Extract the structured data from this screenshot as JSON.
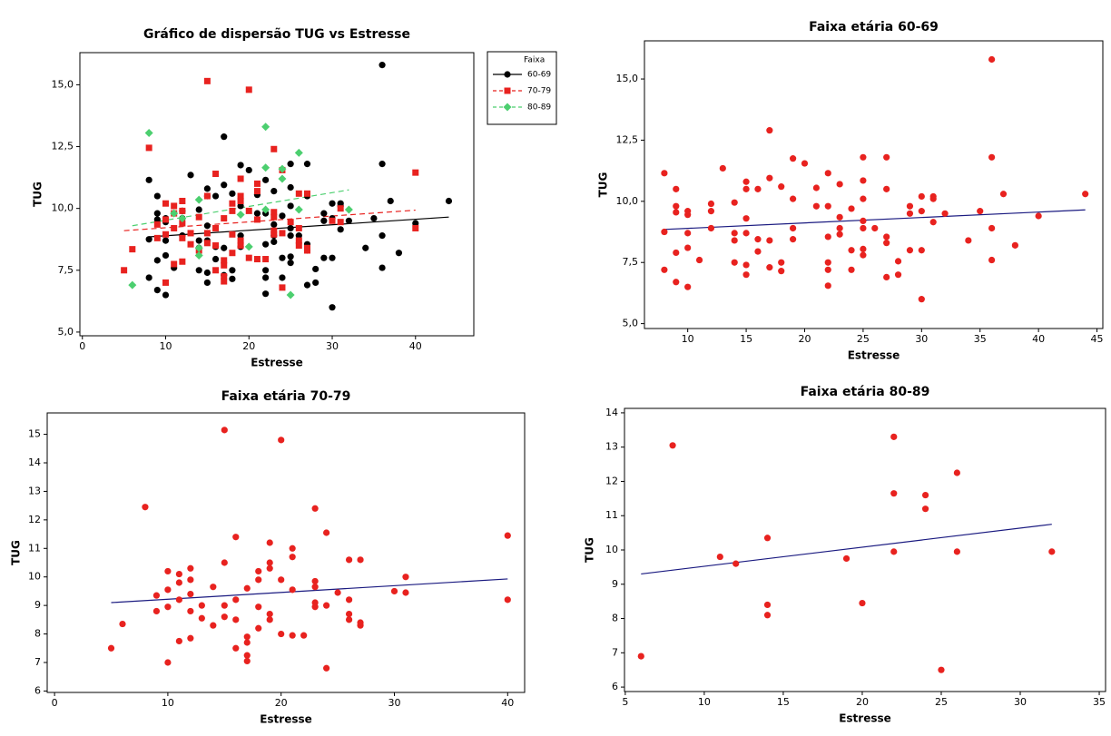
{
  "chart_data": [
    {
      "type": "scatter",
      "title": "Gráfico de dispersão TUG vs Estresse",
      "x_label": "Estresse",
      "y_label": "TUG",
      "xlim": [
        -0.3,
        47
      ],
      "ylim": [
        4.85,
        16.3
      ],
      "xticks": [
        0,
        10,
        20,
        30,
        40
      ],
      "yticks": [
        {
          "value": 5,
          "label": "5,0"
        },
        {
          "value": 7.5,
          "label": "7,5"
        },
        {
          "value": 10,
          "label": "10,0"
        },
        {
          "value": 12.5,
          "label": "12,5"
        },
        {
          "value": 15,
          "label": "15,0"
        }
      ],
      "legend": "right",
      "legend_title": "Faixa",
      "series": [
        {
          "name": "60-69",
          "color": "#000000",
          "marker": "circle",
          "line_style": "solid",
          "x": [
            8,
            8,
            8,
            9,
            9,
            9,
            9,
            9,
            10,
            10,
            10,
            10,
            10,
            11,
            12,
            12,
            12,
            13,
            14,
            14,
            14,
            14,
            15,
            15,
            15,
            15,
            15,
            15,
            16,
            16,
            16,
            17,
            17,
            17,
            17,
            18,
            18,
            18,
            19,
            19,
            19,
            19,
            20,
            21,
            21,
            22,
            22,
            22,
            22,
            22,
            22,
            23,
            23,
            23,
            23,
            24,
            24,
            24,
            25,
            25,
            25,
            25,
            25,
            25,
            25,
            26,
            27,
            27,
            27,
            27,
            27,
            28,
            28,
            29,
            29,
            29,
            30,
            30,
            30,
            30,
            31,
            31,
            31,
            32,
            34,
            35,
            36,
            36,
            36,
            36,
            37,
            38,
            40,
            44
          ],
          "values": [
            11.15,
            8.75,
            7.2,
            10.5,
            9.8,
            9.55,
            7.9,
            6.7,
            9.6,
            9.45,
            8.7,
            8.1,
            6.5,
            7.6,
            9.9,
            9.6,
            8.9,
            11.35,
            9.95,
            8.7,
            8.4,
            7.5,
            10.8,
            10.5,
            9.3,
            8.7,
            7.4,
            7.0,
            10.5,
            8.45,
            7.95,
            12.9,
            10.95,
            8.4,
            7.3,
            10.6,
            7.5,
            7.15,
            11.75,
            10.1,
            8.9,
            8.45,
            11.55,
            10.55,
            9.8,
            11.15,
            9.8,
            8.55,
            7.5,
            7.2,
            6.55,
            10.7,
            9.35,
            8.9,
            8.65,
            9.7,
            8.0,
            7.2,
            11.8,
            10.85,
            10.1,
            9.2,
            8.9,
            8.05,
            7.8,
            8.9,
            11.8,
            10.5,
            8.55,
            8.3,
            6.9,
            7.55,
            7.0,
            9.8,
            9.5,
            8.0,
            10.2,
            9.6,
            8.0,
            6.0,
            10.2,
            10.1,
            9.15,
            9.5,
            8.4,
            9.6,
            15.8,
            11.8,
            8.9,
            7.6,
            10.3,
            8.2,
            9.4,
            10.3
          ],
          "fit": {
            "x": [
              8,
              44
            ],
            "y": [
              8.85,
              9.65
            ]
          }
        },
        {
          "name": "70-79",
          "color": "#e8221f",
          "marker": "square",
          "line_style": "dashed",
          "x": [
            5,
            6,
            8,
            9,
            9,
            10,
            10,
            10,
            10,
            11,
            11,
            11,
            11,
            12,
            12,
            12,
            12,
            12,
            13,
            13,
            14,
            14,
            15,
            15,
            15,
            15,
            16,
            16,
            16,
            16,
            17,
            17,
            17,
            17,
            17,
            18,
            18,
            18,
            18,
            19,
            19,
            19,
            19,
            19,
            20,
            20,
            20,
            21,
            21,
            21,
            21,
            22,
            23,
            23,
            23,
            23,
            23,
            24,
            24,
            24,
            25,
            26,
            26,
            26,
            26,
            27,
            27,
            27,
            30,
            31,
            31,
            40,
            40
          ],
          "values": [
            7.5,
            8.35,
            12.45,
            9.35,
            8.8,
            10.2,
            9.55,
            7.0,
            8.95,
            10.1,
            9.8,
            9.2,
            7.75,
            10.3,
            9.9,
            9.4,
            8.8,
            7.85,
            9.0,
            8.55,
            8.3,
            9.65,
            15.15,
            10.5,
            9.0,
            8.6,
            11.4,
            9.2,
            8.5,
            7.5,
            9.6,
            7.9,
            7.7,
            7.25,
            7.05,
            10.2,
            9.9,
            8.95,
            8.2,
            11.2,
            10.5,
            10.3,
            8.7,
            8.5,
            14.8,
            9.9,
            8.0,
            11.0,
            10.7,
            9.55,
            7.95,
            7.95,
            12.4,
            9.85,
            9.65,
            9.1,
            8.95,
            11.55,
            9.0,
            6.8,
            9.45,
            10.6,
            9.2,
            8.7,
            8.5,
            10.6,
            8.4,
            8.3,
            9.5,
            10.0,
            9.45,
            11.45,
            9.2
          ],
          "fit": {
            "x": [
              5,
              40
            ],
            "y": [
              9.1,
              9.93
            ]
          }
        },
        {
          "name": "80-89",
          "color": "#4ccf6f",
          "marker": "diamond",
          "line_style": "dashed",
          "x": [
            6,
            8,
            11,
            12,
            14,
            14,
            14,
            19,
            20,
            22,
            22,
            22,
            24,
            24,
            25,
            26,
            26,
            32
          ],
          "values": [
            6.9,
            13.05,
            9.8,
            9.6,
            10.35,
            8.4,
            8.1,
            9.75,
            8.45,
            13.3,
            11.65,
            9.95,
            11.6,
            11.2,
            6.5,
            12.25,
            9.95,
            9.95
          ],
          "fit": {
            "x": [
              6,
              32
            ],
            "y": [
              9.3,
              10.75
            ]
          }
        }
      ]
    },
    {
      "type": "scatter",
      "title": "Faixa etária 60-69",
      "x_label": "Estresse",
      "y_label": "TUG",
      "xlim": [
        6.3,
        45.5
      ],
      "ylim": [
        4.8,
        16.56
      ],
      "xticks": [
        10,
        15,
        20,
        25,
        30,
        35,
        40,
        45
      ],
      "yticks": [
        {
          "value": 5,
          "label": "5,0"
        },
        {
          "value": 7.5,
          "label": "7,5"
        },
        {
          "value": 10,
          "label": "10,0"
        },
        {
          "value": 12.5,
          "label": "12,5"
        },
        {
          "value": 15,
          "label": "15,0"
        }
      ],
      "color": "#e8221f",
      "marker": "circle",
      "fit_color": "#1a1a80",
      "x": [
        8,
        8,
        8,
        9,
        9,
        9,
        9,
        9,
        10,
        10,
        10,
        10,
        10,
        11,
        12,
        12,
        12,
        13,
        14,
        14,
        14,
        14,
        15,
        15,
        15,
        15,
        15,
        15,
        16,
        16,
        16,
        17,
        17,
        17,
        17,
        18,
        18,
        18,
        19,
        19,
        19,
        19,
        20,
        21,
        21,
        22,
        22,
        22,
        22,
        22,
        22,
        23,
        23,
        23,
        23,
        24,
        24,
        24,
        25,
        25,
        25,
        25,
        25,
        25,
        25,
        26,
        27,
        27,
        27,
        27,
        27,
        28,
        28,
        29,
        29,
        29,
        30,
        30,
        30,
        30,
        31,
        31,
        31,
        32,
        34,
        35,
        36,
        36,
        36,
        36,
        37,
        38,
        40,
        44
      ],
      "values": [
        11.15,
        8.75,
        7.2,
        10.5,
        9.8,
        9.55,
        7.9,
        6.7,
        9.6,
        9.45,
        8.7,
        8.1,
        6.5,
        7.6,
        9.9,
        9.6,
        8.9,
        11.35,
        9.95,
        8.7,
        8.4,
        7.5,
        10.8,
        10.5,
        9.3,
        8.7,
        7.4,
        7.0,
        10.5,
        8.45,
        7.95,
        12.9,
        10.95,
        8.4,
        7.3,
        10.6,
        7.5,
        7.15,
        11.75,
        10.1,
        8.9,
        8.45,
        11.55,
        10.55,
        9.8,
        11.15,
        9.8,
        8.55,
        7.5,
        7.2,
        6.55,
        10.7,
        9.35,
        8.9,
        8.65,
        9.7,
        8.0,
        7.2,
        11.8,
        10.85,
        10.1,
        9.2,
        8.9,
        8.05,
        7.8,
        8.9,
        11.8,
        10.5,
        8.55,
        8.3,
        6.9,
        7.55,
        7.0,
        9.8,
        9.5,
        8.0,
        10.2,
        9.6,
        8.0,
        6.0,
        10.2,
        10.1,
        9.15,
        9.5,
        8.4,
        9.6,
        15.8,
        11.8,
        8.9,
        7.6,
        10.3,
        8.2,
        9.4,
        10.3
      ],
      "fit": {
        "x": [
          8,
          44
        ],
        "y": [
          8.85,
          9.65
        ]
      }
    },
    {
      "type": "scatter",
      "title": "Faixa etária 70-79",
      "x_label": "Estresse",
      "y_label": "TUG",
      "xlim": [
        -0.65,
        41.5
      ],
      "ylim": [
        5.95,
        15.75
      ],
      "xticks": [
        0,
        10,
        20,
        30,
        40
      ],
      "yticks": [
        6,
        7,
        8,
        9,
        10,
        11,
        12,
        13,
        14,
        15
      ],
      "color": "#e8221f",
      "marker": "circle",
      "fit_color": "#1a1a80",
      "x": [
        5,
        6,
        8,
        9,
        9,
        10,
        10,
        10,
        10,
        11,
        11,
        11,
        11,
        12,
        12,
        12,
        12,
        12,
        13,
        13,
        14,
        14,
        15,
        15,
        15,
        15,
        16,
        16,
        16,
        16,
        17,
        17,
        17,
        17,
        17,
        18,
        18,
        18,
        18,
        19,
        19,
        19,
        19,
        19,
        20,
        20,
        20,
        21,
        21,
        21,
        21,
        22,
        23,
        23,
        23,
        23,
        23,
        24,
        24,
        24,
        25,
        26,
        26,
        26,
        26,
        27,
        27,
        27,
        30,
        31,
        31,
        40,
        40
      ],
      "values": [
        7.5,
        8.35,
        12.45,
        9.35,
        8.8,
        10.2,
        9.55,
        7.0,
        8.95,
        10.1,
        9.8,
        9.2,
        7.75,
        10.3,
        9.9,
        9.4,
        8.8,
        7.85,
        9.0,
        8.55,
        8.3,
        9.65,
        15.15,
        10.5,
        9.0,
        8.6,
        11.4,
        9.2,
        8.5,
        7.5,
        9.6,
        7.9,
        7.7,
        7.25,
        7.05,
        10.2,
        9.9,
        8.95,
        8.2,
        11.2,
        10.5,
        10.3,
        8.7,
        8.5,
        14.8,
        9.9,
        8.0,
        11.0,
        10.7,
        9.55,
        7.95,
        7.95,
        12.4,
        9.85,
        9.65,
        9.1,
        8.95,
        11.55,
        9.0,
        6.8,
        9.45,
        10.6,
        9.2,
        8.7,
        8.5,
        10.6,
        8.4,
        8.3,
        9.5,
        10.0,
        9.45,
        11.45,
        9.2
      ],
      "fit": {
        "x": [
          5,
          40
        ],
        "y": [
          9.1,
          9.93
        ]
      }
    },
    {
      "type": "scatter",
      "title": "Faixa etária 80-89",
      "x_label": "Estresse",
      "y_label": "TUG",
      "xlim": [
        4.95,
        35.4
      ],
      "ylim": [
        5.87,
        14.13
      ],
      "xticks": [
        5,
        10,
        15,
        20,
        25,
        30,
        35
      ],
      "yticks": [
        6,
        7,
        8,
        9,
        10,
        11,
        12,
        13,
        14
      ],
      "color": "#e8221f",
      "marker": "circle",
      "fit_color": "#1a1a80",
      "x": [
        6,
        8,
        11,
        12,
        14,
        14,
        14,
        19,
        20,
        22,
        22,
        22,
        24,
        24,
        25,
        26,
        26,
        32
      ],
      "values": [
        6.9,
        13.05,
        9.8,
        9.6,
        10.35,
        8.4,
        8.1,
        9.75,
        8.45,
        13.3,
        11.65,
        9.95,
        11.6,
        11.2,
        6.5,
        12.25,
        9.95,
        9.95
      ],
      "fit": {
        "x": [
          6,
          32
        ],
        "y": [
          9.3,
          10.75
        ]
      }
    }
  ]
}
